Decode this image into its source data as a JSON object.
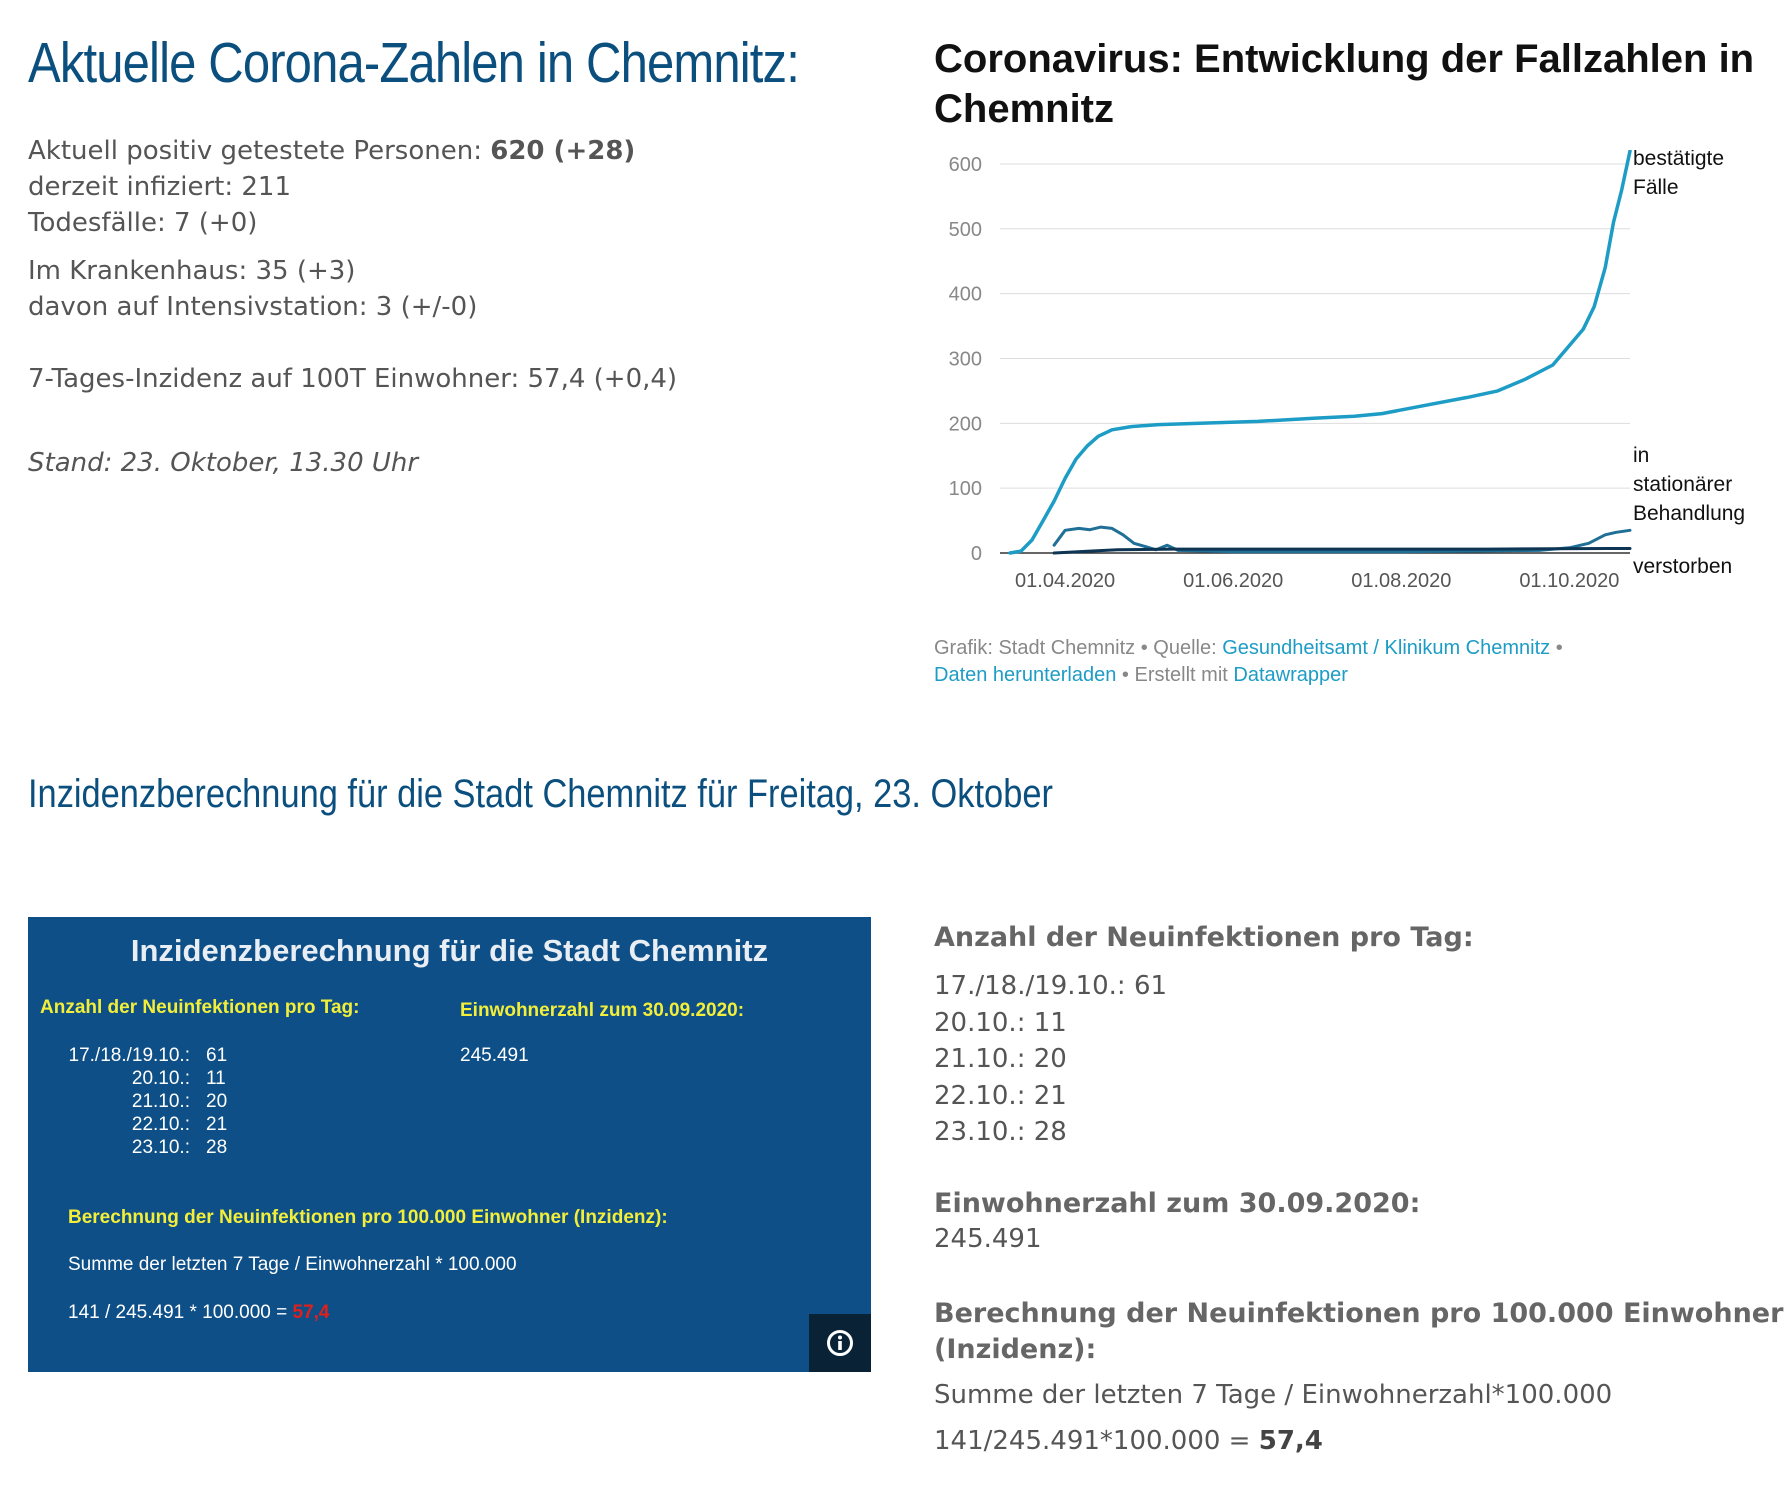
{
  "summary": {
    "title": "Aktuelle Corona-Zahlen in Chemnitz:",
    "positive_label": "Aktuell positiv getestete Personen: ",
    "positive_value": "620 (+28)",
    "infected": "derzeit infiziert: 211",
    "deaths": "Todesfälle: 7 (+0)",
    "hospital": "Im Krankenhaus: 35 (+3)",
    "icu": "davon auf Intensivstation: 3 (+/-0)",
    "incidence": "7-Tages-Inzidenz auf 100T Einwohner: 57,4 (+0,4)",
    "stand": "Stand: 23. Oktober, 13.30 Uhr"
  },
  "chart": {
    "title": "Coronavirus: Entwicklung der Fallzahlen in Chemnitz",
    "credit_prefix": "Grafik: Stadt Chemnitz • Quelle: ",
    "credit_source_link": "Gesundheitsamt / Klinikum Chemnitz",
    "credit_sep": " •",
    "credit_download_link": "Daten herunterladen",
    "credit_made": " • Erstellt mit ",
    "credit_dw_link": "Datawrapper",
    "colors": {
      "confirmed": "#1d9cc6",
      "hospital": "#1f6f96",
      "deaths": "#0e3553",
      "grid": "#dddddd",
      "axis": "#333333",
      "tick": "#888888"
    }
  },
  "chart_data": {
    "type": "line",
    "title": "Coronavirus: Entwicklung der Fallzahlen in Chemnitz",
    "xlabel": "",
    "ylabel": "",
    "ylim": [
      0,
      620
    ],
    "yticks": [
      0,
      100,
      200,
      300,
      400,
      500,
      600
    ],
    "xticks": [
      "01.04.2020",
      "01.06.2020",
      "01.08.2020",
      "01.10.2020"
    ],
    "xlim": [
      "2020-03-12",
      "2020-10-23"
    ],
    "grid": true,
    "series": [
      {
        "name": "bestätigte Fälle",
        "label_lines": [
          "bestätigte",
          "Fälle"
        ],
        "points": [
          [
            "2020-03-12",
            0
          ],
          [
            "2020-03-16",
            3
          ],
          [
            "2020-03-20",
            20
          ],
          [
            "2020-03-24",
            50
          ],
          [
            "2020-03-28",
            80
          ],
          [
            "2020-04-01",
            115
          ],
          [
            "2020-04-05",
            145
          ],
          [
            "2020-04-09",
            165
          ],
          [
            "2020-04-13",
            180
          ],
          [
            "2020-04-18",
            190
          ],
          [
            "2020-04-25",
            195
          ],
          [
            "2020-05-05",
            198
          ],
          [
            "2020-05-20",
            200
          ],
          [
            "2020-06-10",
            203
          ],
          [
            "2020-07-01",
            208
          ],
          [
            "2020-07-15",
            211
          ],
          [
            "2020-07-25",
            215
          ],
          [
            "2020-08-10",
            228
          ],
          [
            "2020-08-25",
            240
          ],
          [
            "2020-09-05",
            250
          ],
          [
            "2020-09-15",
            268
          ],
          [
            "2020-09-25",
            290
          ],
          [
            "2020-10-01",
            320
          ],
          [
            "2020-10-06",
            345
          ],
          [
            "2020-10-10",
            380
          ],
          [
            "2020-10-14",
            440
          ],
          [
            "2020-10-17",
            510
          ],
          [
            "2020-10-20",
            560
          ],
          [
            "2020-10-23",
            620
          ]
        ]
      },
      {
        "name": "in stationärer Behandlung",
        "label_lines": [
          "in",
          "stationärer",
          "Behandlung"
        ],
        "points": [
          [
            "2020-03-28",
            12
          ],
          [
            "2020-04-01",
            35
          ],
          [
            "2020-04-06",
            38
          ],
          [
            "2020-04-10",
            36
          ],
          [
            "2020-04-14",
            40
          ],
          [
            "2020-04-18",
            38
          ],
          [
            "2020-04-22",
            28
          ],
          [
            "2020-04-26",
            15
          ],
          [
            "2020-04-30",
            10
          ],
          [
            "2020-05-04",
            5
          ],
          [
            "2020-05-08",
            12
          ],
          [
            "2020-05-12",
            4
          ],
          [
            "2020-06-01",
            2
          ],
          [
            "2020-08-01",
            2
          ],
          [
            "2020-09-20",
            4
          ],
          [
            "2020-10-01",
            8
          ],
          [
            "2020-10-08",
            15
          ],
          [
            "2020-10-14",
            28
          ],
          [
            "2020-10-18",
            32
          ],
          [
            "2020-10-23",
            35
          ]
        ]
      },
      {
        "name": "verstorben",
        "label_lines": [
          "verstorben"
        ],
        "points": [
          [
            "2020-03-28",
            0
          ],
          [
            "2020-04-10",
            3
          ],
          [
            "2020-04-20",
            5
          ],
          [
            "2020-05-10",
            6
          ],
          [
            "2020-07-01",
            6
          ],
          [
            "2020-09-01",
            6
          ],
          [
            "2020-10-15",
            7
          ],
          [
            "2020-10-23",
            7
          ]
        ]
      }
    ]
  },
  "section": {
    "title": "Inzidenzberechnung für die Stadt Chemnitz für Freitag, 23. Oktober"
  },
  "panel": {
    "title": "Inzidenzberechnung für die Stadt Chemnitz",
    "new_infections_heading": "Anzahl der Neuinfektionen pro Tag:",
    "population_heading": "Einwohnerzahl zum 30.09.2020:",
    "population_value": "245.491",
    "rows": [
      {
        "date": "17./18./19.10.:",
        "value": "61"
      },
      {
        "date": "20.10.:",
        "value": "11"
      },
      {
        "date": "21.10.:",
        "value": "20"
      },
      {
        "date": "22.10.:",
        "value": "21"
      },
      {
        "date": "23.10.:",
        "value": "28"
      }
    ],
    "calc_heading": "Berechnung der Neuinfektionen pro 100.000 Einwohner (Inzidenz):",
    "formula": "Summe der letzten 7 Tage / Einwohnerzahl * 100.000",
    "result_prefix": "141 / 245.491 * 100.000 = ",
    "result_value": "57,4",
    "result_color": "#e0201c"
  },
  "details": {
    "new_infections_heading": "Anzahl der Neuinfektionen pro Tag:",
    "lines": [
      "17./18./19.10.: 61",
      "20.10.: 11",
      "21.10.: 20",
      "22.10.: 21",
      "23.10.: 28"
    ],
    "population_heading": "Einwohnerzahl zum 30.09.2020:",
    "population_value": "245.491",
    "calc_heading_line1": "Berechnung der Neuinfektionen pro 100.000 Einwohner",
    "calc_heading_line2": "(Inzidenz):",
    "formula": "Summe der  letzten 7 Tage / Einwohnerzahl*100.000",
    "result_prefix": "141/245.491*100.000 = ",
    "result_value": "57,4"
  }
}
